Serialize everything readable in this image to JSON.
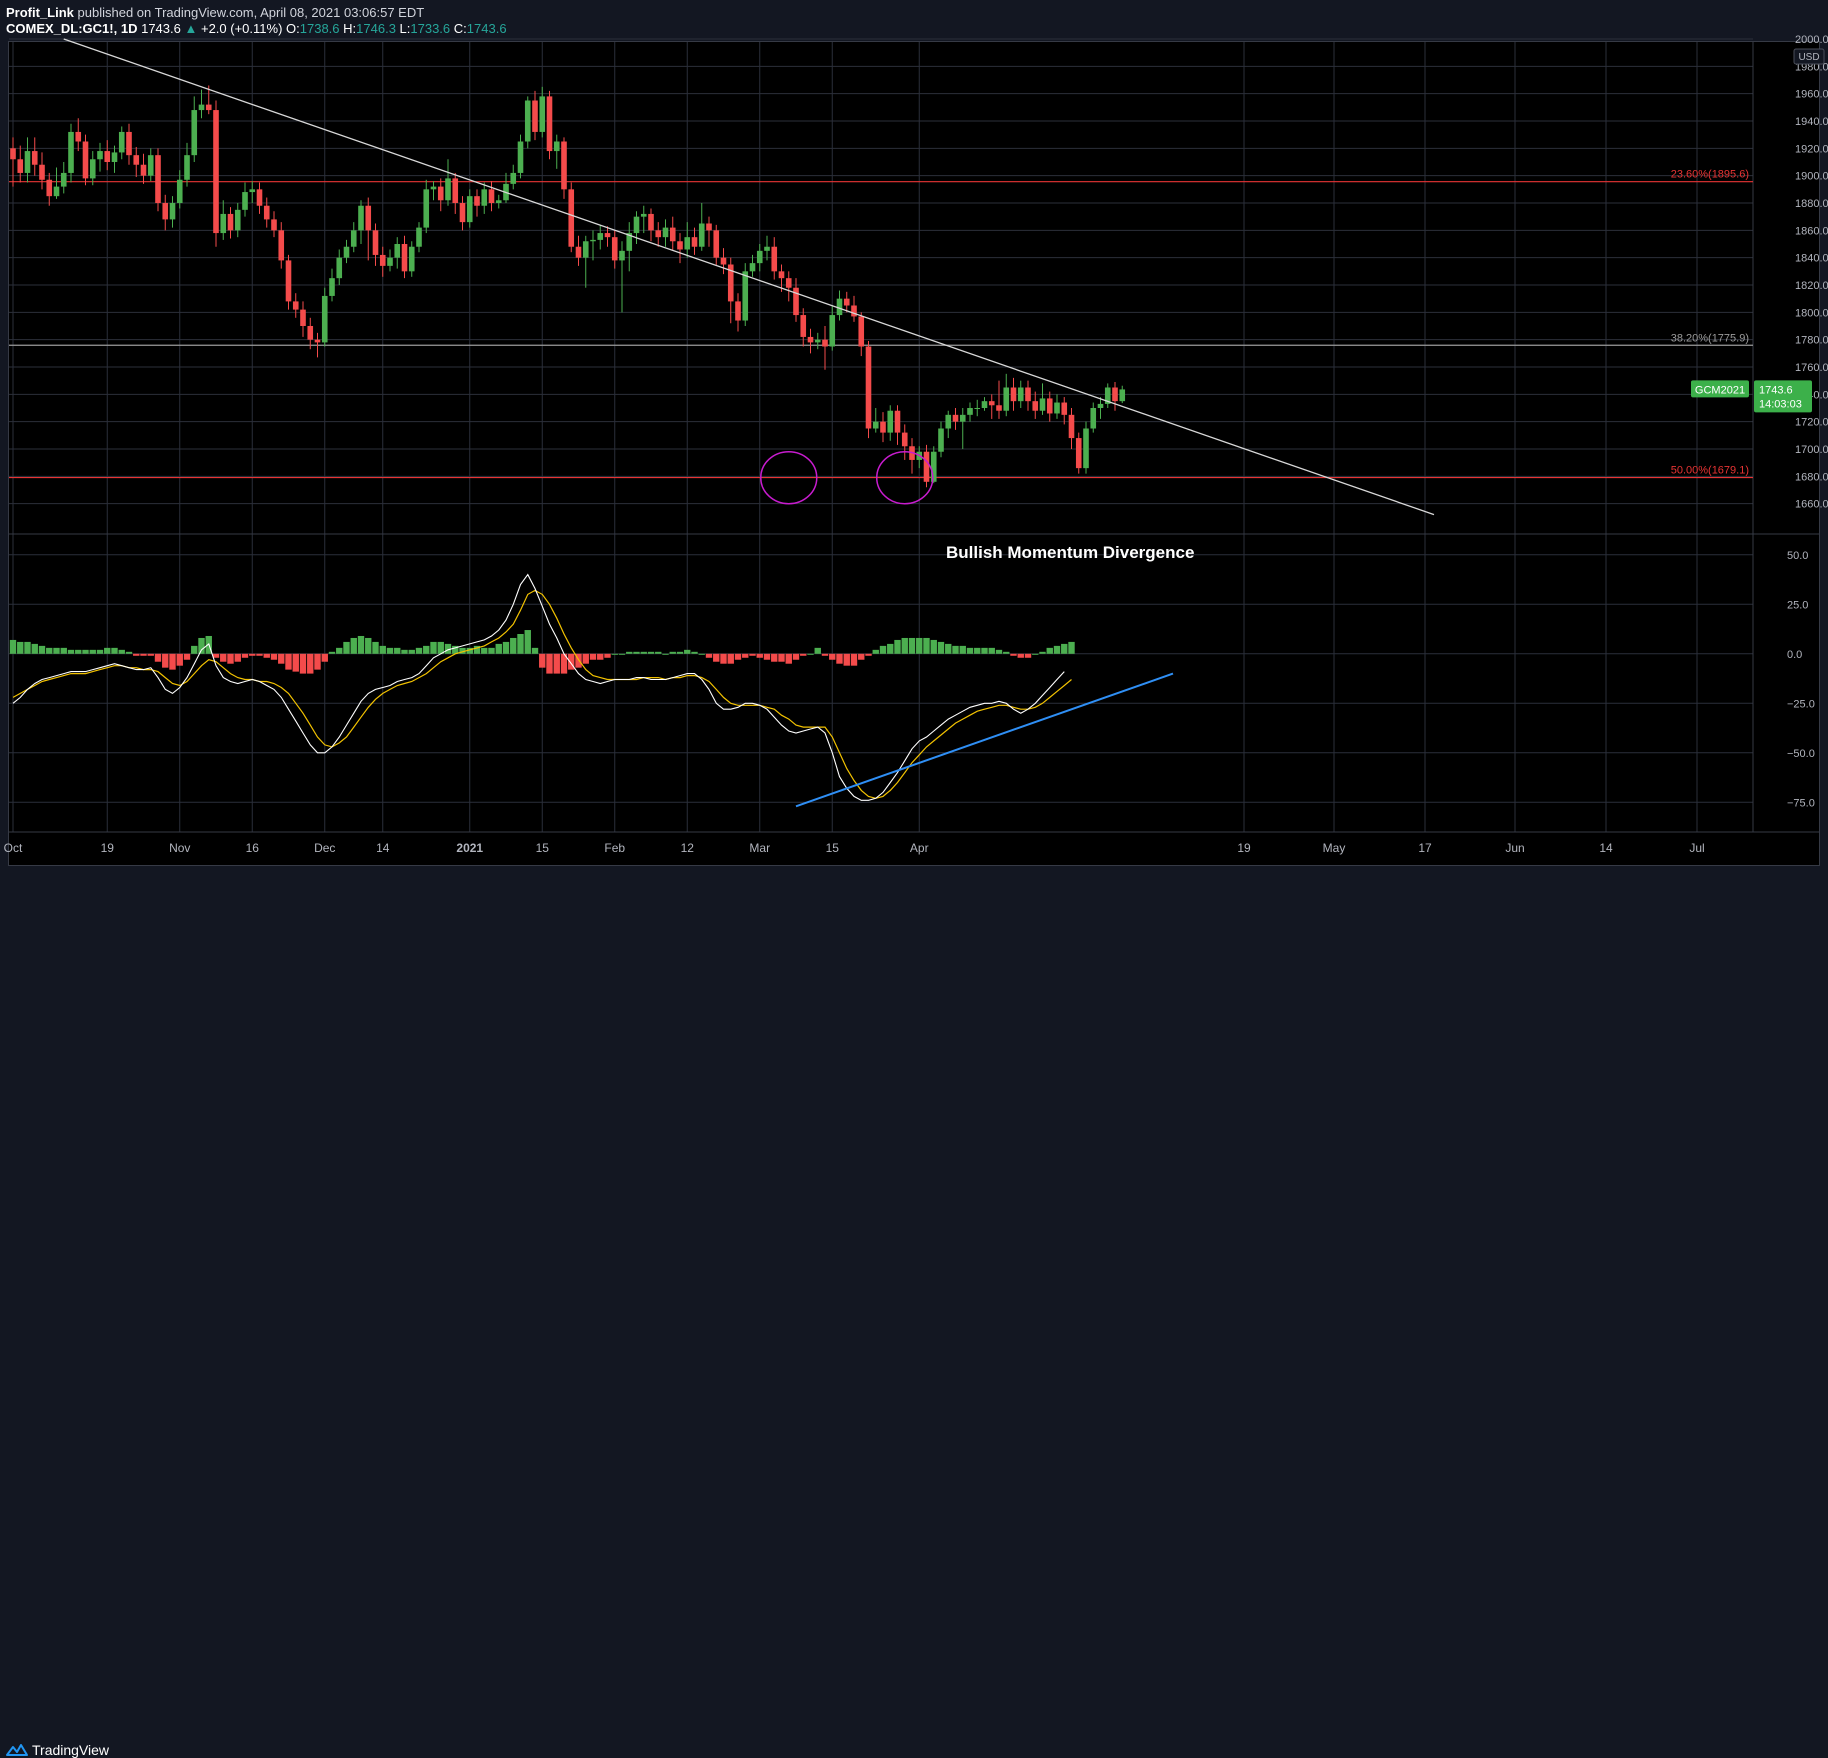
{
  "header": {
    "author": "Profit_Link",
    "published_text": "published on TradingView.com, April 08, 2021 03:06:57 EDT",
    "symbol_line": "COMEX_DL:GC1!, 1D",
    "last_price": "1743.6",
    "change": "+2.0 (+0.11%)",
    "open_label": "O:",
    "open": "1738.6",
    "high_label": "H:",
    "high": "1746.3",
    "low_label": "L:",
    "low": "1733.6",
    "close_label": "C:",
    "close": "1743.6"
  },
  "colors": {
    "up": "#4caf50",
    "down": "#f44b4b",
    "fib_red": "#e83434",
    "trendline": "#d8d8d8",
    "macd": "#ffffff",
    "signal": "#f2c200",
    "divergence_line": "#2f8ff5",
    "circle": "#c81ccf",
    "price_tag": "#3cb04a",
    "grid": "#2b2f3a"
  },
  "chart_data": {
    "type": "candlestick",
    "symbol": "COMEX_DL:GC1!",
    "interval": "1D",
    "currency": "USD",
    "price_axis": {
      "ylim": [
        1640,
        2000
      ],
      "ticks": [
        1660,
        1680,
        1700,
        1720,
        1740,
        1760,
        1780,
        1800,
        1820,
        1840,
        1860,
        1880,
        1900,
        1920,
        1940,
        1960,
        1980,
        2000
      ]
    },
    "time_axis_labels": [
      "Oct",
      "19",
      "Nov",
      "16",
      "Dec",
      "14",
      "2021",
      "15",
      "Feb",
      "12",
      "Mar",
      "15",
      "Apr",
      "19",
      "May",
      "17",
      "Jun",
      "14",
      "Jul"
    ],
    "time_axis_bold": [
      "2021"
    ],
    "fib_levels": [
      {
        "label": "23.60%(1895.6)",
        "price": 1895.6,
        "color": "#e83434"
      },
      {
        "label": "38.20%(1775.9)",
        "price": 1775.9,
        "color": "#9b9b9b"
      },
      {
        "label": "50.00%(1679.1)",
        "price": 1679.1,
        "color": "#e83434"
      }
    ],
    "price_tag": {
      "symbol": "GCM2021",
      "price": "1743.6",
      "countdown": "14:03:03"
    },
    "annotation": "Bullish Momentum Divergence",
    "candles": [
      [
        1920,
        1912,
        1928,
        1892
      ],
      [
        1912,
        1902,
        1922,
        1895
      ],
      [
        1902,
        1918,
        1928,
        1895
      ],
      [
        1918,
        1908,
        1928,
        1900
      ],
      [
        1908,
        1897,
        1917,
        1890
      ],
      [
        1897,
        1885,
        1902,
        1878
      ],
      [
        1885,
        1892,
        1906,
        1883
      ],
      [
        1892,
        1902,
        1910,
        1887
      ],
      [
        1902,
        1932,
        1938,
        1895
      ],
      [
        1932,
        1925,
        1942,
        1918
      ],
      [
        1925,
        1898,
        1930,
        1893
      ],
      [
        1898,
        1912,
        1918,
        1893
      ],
      [
        1912,
        1918,
        1924,
        1903
      ],
      [
        1918,
        1910,
        1926,
        1904
      ],
      [
        1910,
        1917,
        1922,
        1902
      ],
      [
        1917,
        1932,
        1936,
        1912
      ],
      [
        1932,
        1915,
        1938,
        1908
      ],
      [
        1915,
        1908,
        1921,
        1899
      ],
      [
        1908,
        1900,
        1916,
        1894
      ],
      [
        1900,
        1915,
        1920,
        1896
      ],
      [
        1915,
        1880,
        1920,
        1874
      ],
      [
        1880,
        1868,
        1886,
        1860
      ],
      [
        1868,
        1880,
        1885,
        1862
      ],
      [
        1880,
        1897,
        1904,
        1876
      ],
      [
        1897,
        1915,
        1924,
        1892
      ],
      [
        1915,
        1948,
        1958,
        1910
      ],
      [
        1948,
        1952,
        1963,
        1942
      ],
      [
        1952,
        1948,
        1966,
        1945
      ],
      [
        1948,
        1858,
        1955,
        1848
      ],
      [
        1858,
        1872,
        1882,
        1853
      ],
      [
        1872,
        1860,
        1877,
        1854
      ],
      [
        1860,
        1875,
        1880,
        1855
      ],
      [
        1875,
        1888,
        1895,
        1870
      ],
      [
        1888,
        1890,
        1896,
        1880
      ],
      [
        1890,
        1878,
        1895,
        1872
      ],
      [
        1878,
        1868,
        1884,
        1862
      ],
      [
        1868,
        1860,
        1874,
        1855
      ],
      [
        1860,
        1838,
        1866,
        1832
      ],
      [
        1838,
        1808,
        1842,
        1802
      ],
      [
        1808,
        1802,
        1814,
        1796
      ],
      [
        1802,
        1790,
        1808,
        1782
      ],
      [
        1790,
        1780,
        1796,
        1773
      ],
      [
        1780,
        1778,
        1785,
        1767
      ],
      [
        1778,
        1812,
        1818,
        1775
      ],
      [
        1812,
        1825,
        1832,
        1808
      ],
      [
        1825,
        1840,
        1846,
        1820
      ],
      [
        1840,
        1848,
        1853,
        1836
      ],
      [
        1848,
        1860,
        1866,
        1844
      ],
      [
        1860,
        1878,
        1882,
        1850
      ],
      [
        1878,
        1860,
        1884,
        1838
      ],
      [
        1860,
        1842,
        1865,
        1834
      ],
      [
        1842,
        1834,
        1848,
        1826
      ],
      [
        1834,
        1840,
        1846,
        1830
      ],
      [
        1840,
        1850,
        1855,
        1832
      ],
      [
        1850,
        1830,
        1856,
        1825
      ],
      [
        1830,
        1848,
        1852,
        1826
      ],
      [
        1848,
        1862,
        1866,
        1844
      ],
      [
        1862,
        1890,
        1897,
        1858
      ],
      [
        1890,
        1892,
        1896,
        1882
      ],
      [
        1892,
        1882,
        1898,
        1874
      ],
      [
        1882,
        1898,
        1912,
        1878
      ],
      [
        1898,
        1880,
        1902,
        1872
      ],
      [
        1880,
        1866,
        1885,
        1860
      ],
      [
        1866,
        1885,
        1890,
        1862
      ],
      [
        1885,
        1878,
        1890,
        1870
      ],
      [
        1878,
        1890,
        1895,
        1872
      ],
      [
        1890,
        1880,
        1896,
        1874
      ],
      [
        1880,
        1882,
        1886,
        1876
      ],
      [
        1882,
        1894,
        1902,
        1880
      ],
      [
        1894,
        1902,
        1908,
        1890
      ],
      [
        1902,
        1925,
        1930,
        1898
      ],
      [
        1925,
        1955,
        1958,
        1920
      ],
      [
        1955,
        1932,
        1962,
        1926
      ],
      [
        1932,
        1958,
        1965,
        1928
      ],
      [
        1958,
        1918,
        1962,
        1912
      ],
      [
        1918,
        1925,
        1930,
        1905
      ],
      [
        1925,
        1890,
        1928,
        1883
      ],
      [
        1890,
        1848,
        1895,
        1844
      ],
      [
        1848,
        1840,
        1856,
        1834
      ],
      [
        1840,
        1852,
        1856,
        1818
      ],
      [
        1852,
        1853,
        1860,
        1838
      ],
      [
        1853,
        1858,
        1864,
        1846
      ],
      [
        1858,
        1855,
        1863,
        1848
      ],
      [
        1855,
        1838,
        1860,
        1832
      ],
      [
        1838,
        1845,
        1852,
        1800
      ],
      [
        1845,
        1858,
        1866,
        1830
      ],
      [
        1858,
        1870,
        1874,
        1850
      ],
      [
        1870,
        1872,
        1878,
        1858
      ],
      [
        1872,
        1860,
        1876,
        1852
      ],
      [
        1860,
        1855,
        1866,
        1848
      ],
      [
        1855,
        1862,
        1868,
        1848
      ],
      [
        1862,
        1852,
        1870,
        1845
      ],
      [
        1852,
        1846,
        1858,
        1836
      ],
      [
        1846,
        1855,
        1866,
        1840
      ],
      [
        1855,
        1848,
        1862,
        1842
      ],
      [
        1848,
        1865,
        1880,
        1845
      ],
      [
        1865,
        1860,
        1870,
        1848
      ],
      [
        1860,
        1840,
        1864,
        1834
      ],
      [
        1840,
        1835,
        1847,
        1828
      ],
      [
        1835,
        1808,
        1840,
        1792
      ],
      [
        1808,
        1794,
        1814,
        1786
      ],
      [
        1794,
        1830,
        1836,
        1790
      ],
      [
        1830,
        1836,
        1842,
        1826
      ],
      [
        1836,
        1845,
        1850,
        1830
      ],
      [
        1845,
        1848,
        1856,
        1838
      ],
      [
        1848,
        1830,
        1855,
        1824
      ],
      [
        1830,
        1825,
        1835,
        1815
      ],
      [
        1825,
        1818,
        1830,
        1808
      ],
      [
        1818,
        1798,
        1825,
        1793
      ],
      [
        1798,
        1782,
        1803,
        1775
      ],
      [
        1782,
        1778,
        1788,
        1770
      ],
      [
        1778,
        1780,
        1785,
        1773
      ],
      [
        1780,
        1775,
        1790,
        1758
      ],
      [
        1775,
        1798,
        1805,
        1772
      ],
      [
        1798,
        1810,
        1816,
        1794
      ],
      [
        1810,
        1805,
        1815,
        1800
      ],
      [
        1805,
        1797,
        1812,
        1793
      ],
      [
        1797,
        1775,
        1800,
        1768
      ],
      [
        1775,
        1715,
        1779,
        1708
      ],
      [
        1715,
        1720,
        1730,
        1712
      ],
      [
        1720,
        1712,
        1727,
        1705
      ],
      [
        1712,
        1728,
        1732,
        1706
      ],
      [
        1728,
        1712,
        1732,
        1703
      ],
      [
        1712,
        1702,
        1718,
        1692
      ],
      [
        1702,
        1692,
        1708,
        1682
      ],
      [
        1692,
        1698,
        1702,
        1686
      ],
      [
        1698,
        1676,
        1703,
        1672
      ],
      [
        1676,
        1698,
        1702,
        1675
      ],
      [
        1698,
        1715,
        1720,
        1694
      ],
      [
        1715,
        1725,
        1728,
        1708
      ],
      [
        1725,
        1720,
        1730,
        1714
      ],
      [
        1720,
        1725,
        1730,
        1700
      ],
      [
        1725,
        1730,
        1734,
        1720
      ],
      [
        1730,
        1730,
        1736,
        1724
      ],
      [
        1730,
        1735,
        1738,
        1728
      ],
      [
        1735,
        1732,
        1740,
        1722
      ],
      [
        1732,
        1728,
        1750,
        1722
      ],
      [
        1728,
        1745,
        1755,
        1724
      ],
      [
        1745,
        1735,
        1752,
        1728
      ],
      [
        1735,
        1745,
        1750,
        1730
      ],
      [
        1745,
        1735,
        1750,
        1728
      ],
      [
        1735,
        1728,
        1742,
        1722
      ],
      [
        1728,
        1737,
        1748,
        1725
      ],
      [
        1737,
        1726,
        1742,
        1720
      ],
      [
        1726,
        1734,
        1740,
        1722
      ],
      [
        1734,
        1725,
        1738,
        1718
      ],
      [
        1725,
        1708,
        1730,
        1700
      ],
      [
        1708,
        1686,
        1712,
        1682
      ],
      [
        1686,
        1715,
        1720,
        1682
      ],
      [
        1715,
        1730,
        1734,
        1712
      ],
      [
        1730,
        1733,
        1738,
        1722
      ],
      [
        1733,
        1745,
        1748,
        1730
      ],
      [
        1745,
        1735,
        1749,
        1728
      ],
      [
        1735,
        1743.6,
        1746.3,
        1733.6
      ]
    ],
    "candle_index_rule": {
      "first_label": "Oct",
      "labels_index": {
        "Oct": 0,
        "19": 13,
        "Nov": 23,
        "16": 33,
        "Dec": 43,
        "14": 51,
        "2021": 63,
        "15": 73,
        "Feb": 83,
        "12": 93,
        "Mar": 103,
        "15b": 113,
        "Apr": 125
      }
    },
    "trendline": {
      "from": {
        "index": 7,
        "price": 2000
      },
      "to": {
        "index": 196,
        "price": 1652
      }
    },
    "circles_at": [
      {
        "index": 107,
        "price": 1679
      },
      {
        "index": 123,
        "price": 1679
      }
    ],
    "oscillator": {
      "ylim": [
        -90,
        60
      ],
      "ticks": [
        50.0,
        25.0,
        0.0,
        -25.0,
        -50.0,
        -75.0
      ],
      "tick_labels": [
        "50.0",
        "25.0",
        "0.0",
        "−25.0",
        "−50.0",
        "−75.0"
      ],
      "macd": [
        -25,
        -22,
        -18,
        -15,
        -13,
        -12,
        -11,
        -10,
        -9,
        -9,
        -9,
        -8,
        -7,
        -6,
        -5,
        -6,
        -7,
        -8,
        -8,
        -7,
        -12,
        -18,
        -20,
        -17,
        -12,
        -5,
        2,
        5,
        -6,
        -12,
        -14,
        -15,
        -14,
        -13,
        -14,
        -16,
        -18,
        -22,
        -28,
        -34,
        -40,
        -46,
        -50,
        -50,
        -47,
        -42,
        -36,
        -30,
        -24,
        -20,
        -18,
        -17,
        -16,
        -14,
        -13,
        -12,
        -10,
        -6,
        -2,
        0,
        2,
        3,
        4,
        5,
        6,
        7,
        9,
        12,
        17,
        25,
        35,
        40,
        33,
        24,
        15,
        8,
        0,
        -5,
        -10,
        -13,
        -14,
        -15,
        -14,
        -13,
        -13,
        -13,
        -12,
        -12,
        -13,
        -13,
        -13,
        -12,
        -11,
        -10,
        -10,
        -13,
        -18,
        -25,
        -28,
        -28,
        -27,
        -25,
        -25,
        -26,
        -28,
        -32,
        -36,
        -39,
        -40,
        -39,
        -38,
        -37,
        -40,
        -50,
        -62,
        -68,
        -72,
        -74,
        -74,
        -73,
        -70,
        -65,
        -60,
        -54,
        -48,
        -44,
        -42,
        -39,
        -36,
        -33,
        -31,
        -29,
        -27,
        -26,
        -25,
        -25,
        -24,
        -25,
        -28,
        -30,
        -28,
        -25,
        -21,
        -17,
        -13,
        -9
      ],
      "signal": [
        -22,
        -20,
        -18,
        -16,
        -14,
        -13,
        -12,
        -11,
        -10,
        -10,
        -10,
        -9,
        -8,
        -7,
        -6,
        -6,
        -7,
        -7,
        -8,
        -8,
        -9,
        -12,
        -15,
        -16,
        -14,
        -10,
        -6,
        -3,
        -4,
        -7,
        -10,
        -12,
        -13,
        -13,
        -14,
        -14,
        -15,
        -17,
        -20,
        -25,
        -30,
        -36,
        -42,
        -46,
        -47,
        -45,
        -42,
        -37,
        -32,
        -27,
        -23,
        -20,
        -18,
        -16,
        -15,
        -14,
        -12,
        -10,
        -7,
        -4,
        -2,
        0,
        1,
        2,
        3,
        4,
        6,
        8,
        11,
        15,
        22,
        30,
        32,
        30,
        25,
        18,
        10,
        3,
        -3,
        -8,
        -11,
        -12,
        -13,
        -13,
        -13,
        -13,
        -13,
        -12,
        -12,
        -12,
        -13,
        -12,
        -12,
        -11,
        -11,
        -12,
        -14,
        -18,
        -22,
        -25,
        -26,
        -26,
        -26,
        -26,
        -27,
        -28,
        -31,
        -33,
        -36,
        -37,
        -37,
        -37,
        -37,
        -42,
        -50,
        -58,
        -64,
        -69,
        -72,
        -73,
        -72,
        -69,
        -65,
        -60,
        -55,
        -51,
        -47,
        -44,
        -41,
        -38,
        -35,
        -33,
        -31,
        -29,
        -28,
        -27,
        -26,
        -26,
        -27,
        -28,
        -28,
        -27,
        -25,
        -22,
        -19,
        -16,
        -13
      ],
      "histogram": [
        7,
        6,
        6,
        5,
        4,
        3,
        3,
        3,
        2,
        2,
        2,
        2,
        2,
        3,
        3,
        2,
        1,
        -1,
        -1,
        -1,
        -4,
        -7,
        -8,
        -6,
        -3,
        4,
        8,
        9,
        -2,
        -4,
        -5,
        -4,
        -2,
        -1,
        -1,
        -2,
        -3,
        -5,
        -8,
        -9,
        -10,
        -10,
        -8,
        -4,
        1,
        3,
        6,
        8,
        9,
        8,
        6,
        4,
        3,
        3,
        2,
        2,
        3,
        4,
        6,
        6,
        5,
        4,
        3,
        3,
        4,
        3,
        3,
        5,
        6,
        8,
        10,
        12,
        3,
        -7,
        -10,
        -10,
        -10,
        -8,
        -7,
        -5,
        -3,
        -3,
        -2,
        0,
        0,
        1,
        1,
        1,
        1,
        1,
        0,
        1,
        1,
        2,
        1,
        0,
        -2,
        -4,
        -5,
        -5,
        -3,
        -2,
        -1,
        -2,
        -3,
        -4,
        -4,
        -5,
        -3,
        -1,
        0,
        3,
        -1,
        -3,
        -5,
        -6,
        -6,
        -3,
        -1,
        2,
        4,
        5,
        7,
        8,
        8,
        8,
        8,
        7,
        6,
        5,
        4,
        4,
        3,
        3,
        3,
        3,
        2,
        1,
        -1,
        -2,
        -2,
        0,
        1,
        3,
        4,
        5,
        6
      ],
      "divergence_line": {
        "from": {
          "index": 108,
          "value": -77
        },
        "to": {
          "index": 160,
          "value": -10
        }
      }
    }
  }
}
